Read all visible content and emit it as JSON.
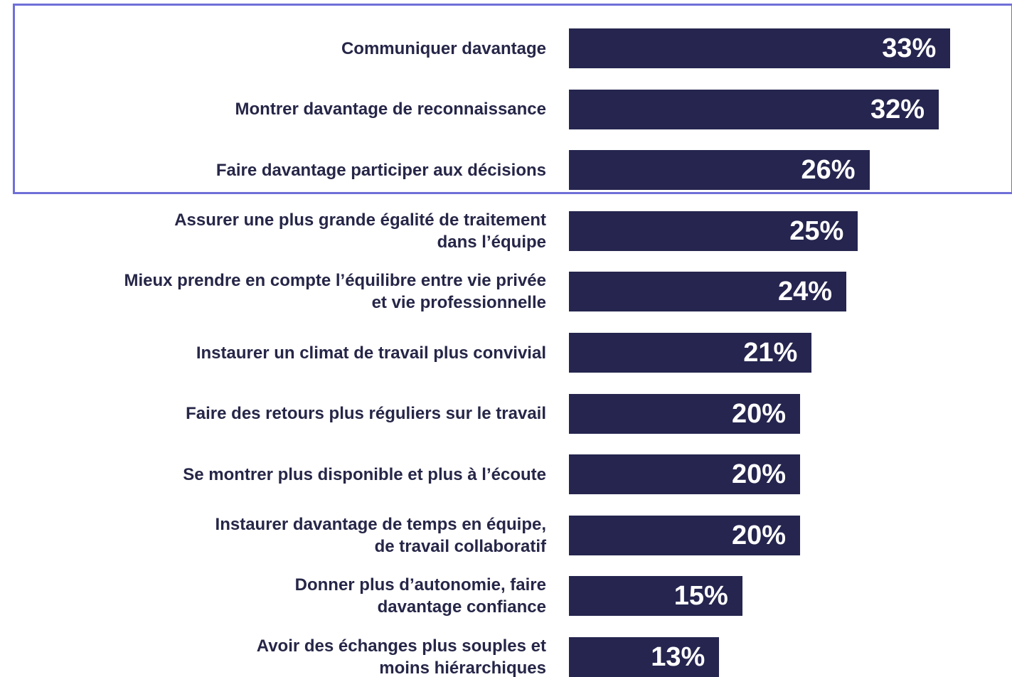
{
  "chart_data": {
    "type": "bar",
    "orientation": "horizontal",
    "color": "#25254f",
    "categories": [
      "Communiquer davantage",
      "Montrer davantage de reconnaissance",
      "Faire davantage participer aux décisions",
      "Assurer une plus grande égalité de traitement\ndans l’équipe",
      "Mieux prendre en compte l’équilibre entre vie privée\net vie professionnelle",
      "Instaurer un climat de travail plus convivial",
      "Faire des retours plus réguliers sur le travail",
      "Se montrer plus disponible et plus à l’écoute",
      "Instaurer davantage de temps en équipe,\nde travail collaboratif",
      "Donner plus d’autonomie, faire\ndavantage confiance",
      "Avoir des échanges plus souples et\nmoins hiérarchiques"
    ],
    "values": [
      33,
      32,
      26,
      25,
      24,
      21,
      20,
      20,
      20,
      15,
      13
    ],
    "value_labels": [
      "33%",
      "32%",
      "26%",
      "25%",
      "24%",
      "21%",
      "20%",
      "20%",
      "20%",
      "15%",
      "13%"
    ]
  }
}
